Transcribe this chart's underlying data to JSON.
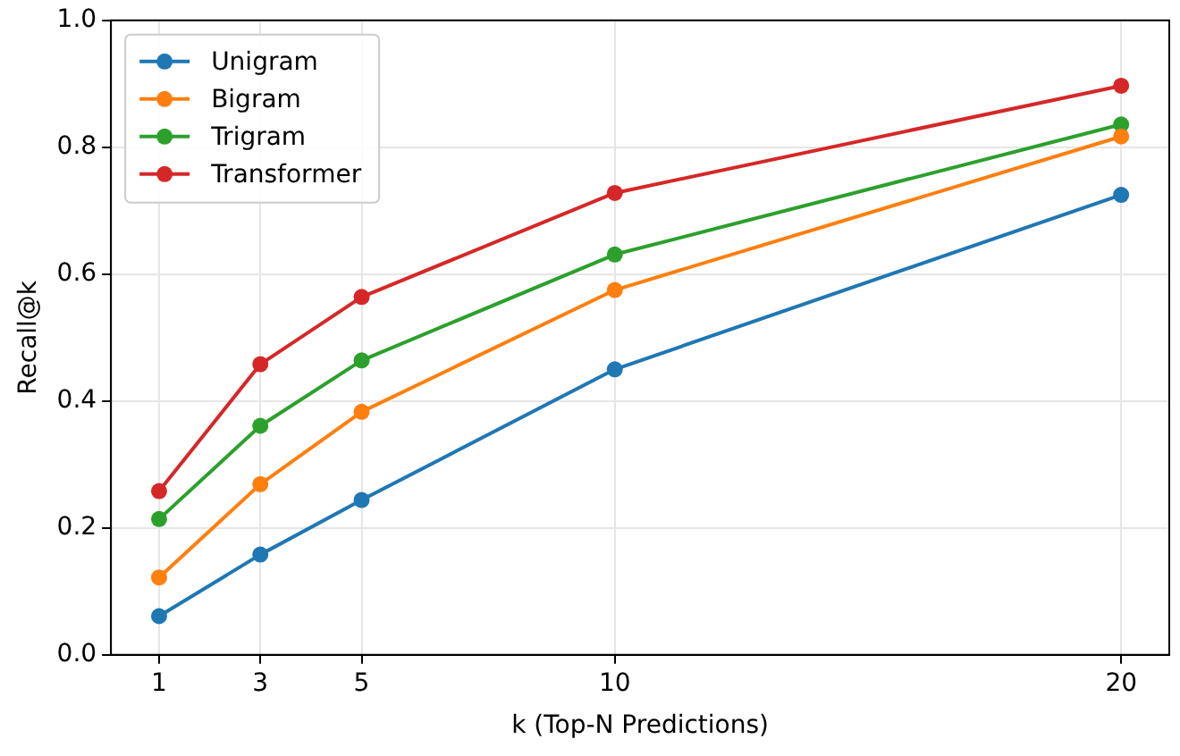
{
  "chart_data": {
    "type": "line",
    "xlabel": "k (Top-N Predictions)",
    "ylabel": "Recall@k",
    "x": [
      1,
      3,
      5,
      10,
      20
    ],
    "series": [
      {
        "name": "Unigram",
        "color": "#1f77b4",
        "values": [
          0.061,
          0.158,
          0.244,
          0.45,
          0.725
        ]
      },
      {
        "name": "Bigram",
        "color": "#ff7f0e",
        "values": [
          0.122,
          0.269,
          0.383,
          0.575,
          0.817
        ]
      },
      {
        "name": "Trigram",
        "color": "#2ca02c",
        "values": [
          0.214,
          0.361,
          0.464,
          0.631,
          0.836
        ]
      },
      {
        "name": "Transformer",
        "color": "#d62728",
        "values": [
          0.258,
          0.458,
          0.564,
          0.728,
          0.897
        ]
      }
    ],
    "xlim": [
      0.05,
      20.95
    ],
    "xticks": [
      1,
      3,
      5,
      10,
      20
    ],
    "ylim": [
      0,
      1
    ],
    "yticks": [
      {
        "value": 0,
        "label": "0.0"
      },
      {
        "value": 0.2,
        "label": "0.2"
      },
      {
        "value": 0.4,
        "label": "0.4"
      },
      {
        "value": 0.6,
        "label": "0.6"
      },
      {
        "value": 0.8,
        "label": "0.8"
      },
      {
        "value": 1,
        "label": "1.0"
      }
    ],
    "grid": true,
    "legend": "top left",
    "marker": "circle",
    "line_style": "solid"
  }
}
